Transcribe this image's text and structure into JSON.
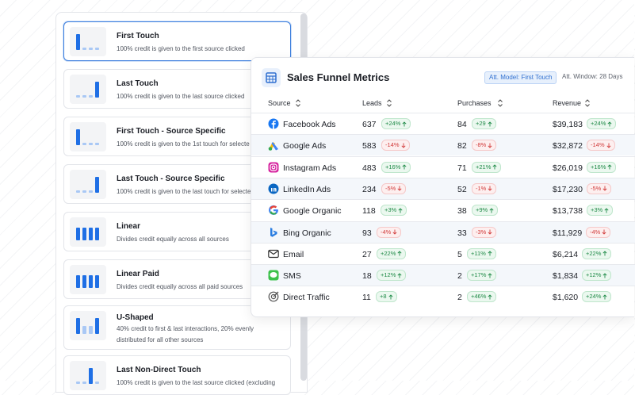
{
  "models": [
    {
      "title": "First Touch",
      "description": "100% credit is given to the first source clicked"
    },
    {
      "title": "Last Touch",
      "description": "100% credit is given to the last source clicked"
    },
    {
      "title": "First Touch - Source Specific",
      "description": "100% credit is given to the 1st touch for selecte"
    },
    {
      "title": "Last Touch - Source Specific",
      "description": "100% credit is given to the last touch for selecte"
    },
    {
      "title": "Linear",
      "description": "Divides credit equally across all sources"
    },
    {
      "title": "Linear Paid",
      "description": "Divides credit equally across all paid sources"
    },
    {
      "title": "U-Shaped",
      "description": "40% credit to first & last interactions, 20% evenly distributed for all other sources"
    },
    {
      "title": "Last Non-Direct Touch",
      "description": "100% credit is given to the last source clicked (excluding"
    }
  ],
  "panel": {
    "title": "Sales Funnel Metrics",
    "model_badge": "Att. Model: First Touch",
    "window_label": "Att. Window: 28 Days",
    "table": {
      "headers": [
        "Source",
        "Leads",
        "Purchases",
        "Revenue"
      ],
      "rows": [
        {
          "source": "Facebook Ads",
          "leads": 637,
          "leads_change": "+24%",
          "purchases": 84,
          "purchases_change": "+29",
          "revenue": "$39,183",
          "revenue_change": "+24%"
        },
        {
          "source": "Google Ads",
          "leads": 583,
          "leads_change": "-14%",
          "purchases": 82,
          "purchases_change": "-8%",
          "revenue": "$32,872",
          "revenue_change": "-14%"
        },
        {
          "source": "Instagram Ads",
          "leads": 483,
          "leads_change": "+16%",
          "purchases": 71,
          "purchases_change": "+21%",
          "revenue": "$26,019",
          "revenue_change": "+16%"
        },
        {
          "source": "LinkedIn Ads",
          "leads": 234,
          "leads_change": "-5%",
          "purchases": 52,
          "purchases_change": "-1%",
          "revenue": "$17,230",
          "revenue_change": "-5%"
        },
        {
          "source": "Google Organic",
          "leads": 118,
          "leads_change": "+3%",
          "purchases": 38,
          "purchases_change": "+9%",
          "revenue": "$13,738",
          "revenue_change": "+3%"
        },
        {
          "source": "Bing Organic",
          "leads": 93,
          "leads_change": "-4%",
          "purchases": 33,
          "purchases_change": "-3%",
          "revenue": "$11,929",
          "revenue_change": "-4%"
        },
        {
          "source": "Email",
          "leads": 27,
          "leads_change": "+22%",
          "purchases": 5,
          "purchases_change": "+11%",
          "revenue": "$6,214",
          "revenue_change": "+22%"
        },
        {
          "source": "SMS",
          "leads": 18,
          "leads_change": "+12%",
          "purchases": 2,
          "purchases_change": "+17%",
          "revenue": "$1,834",
          "revenue_change": "+12%"
        },
        {
          "source": "Direct Traffic",
          "leads": 11,
          "leads_change": "+8",
          "purchases": 2,
          "purchases_change": "+46%",
          "revenue": "$1,620",
          "revenue_change": "+24%"
        }
      ]
    }
  }
}
